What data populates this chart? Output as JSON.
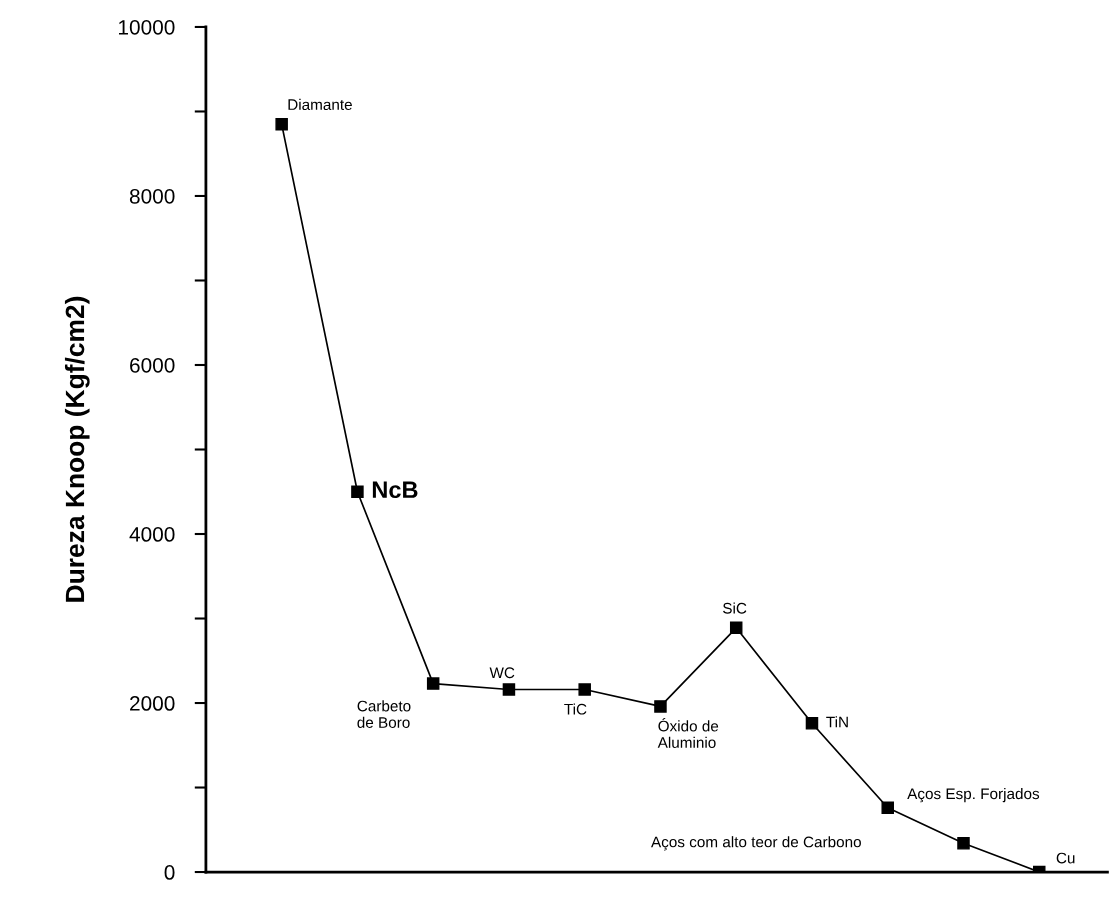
{
  "chart_data": {
    "type": "line",
    "ylabel": "Dureza Knoop (Kgf/cm2)",
    "categories": [
      null,
      null,
      null,
      null,
      null,
      null,
      null,
      null,
      null,
      null,
      null
    ],
    "series": [
      {
        "color": "#000000",
        "values": [
          8850,
          4500,
          2230,
          2160,
          2160,
          1960,
          2890,
          1760,
          760,
          340,
          0
        ]
      }
    ],
    "ylim": [
      0,
      10000
    ],
    "yticks": [
      0,
      {
        "value": 1000,
        "label": null
      },
      2000,
      {
        "value": 3000,
        "label": null
      },
      4000,
      {
        "value": 5000,
        "label": null
      },
      6000,
      {
        "value": 7000,
        "label": null
      },
      8000,
      {
        "value": 9000,
        "label": null
      },
      10000
    ],
    "tick_labels": "y",
    "marker": "square",
    "line_style": "solid",
    "annotations": [
      "Diamante",
      "NcB",
      "Carbeto\nde Boro",
      "WC",
      "TiC",
      "Óxido de\nAluminio",
      "SiC",
      "TiN",
      "Aços Esp. Forjados",
      "Aços com alto teor de Carbono",
      "Cu"
    ]
  }
}
